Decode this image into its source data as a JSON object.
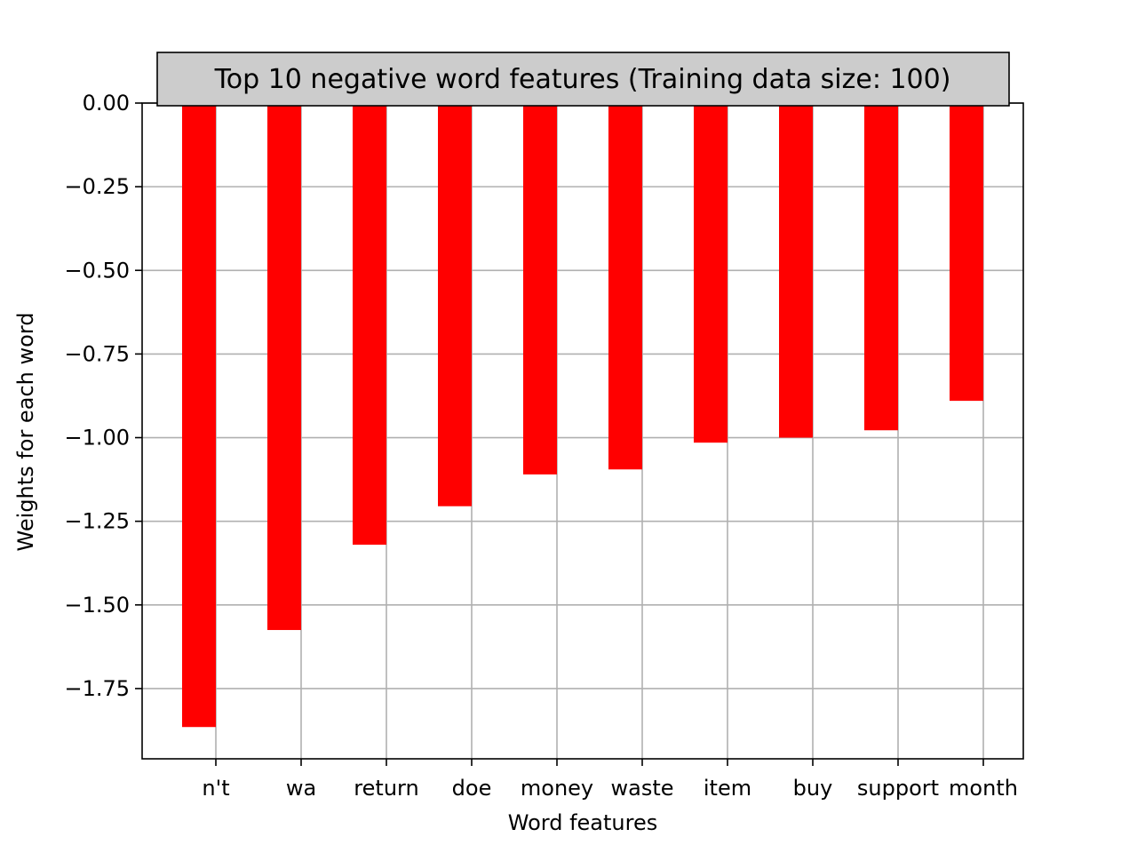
{
  "chart_data": {
    "type": "bar",
    "title": "Top 10 negative word features (Training data size: 100)",
    "xlabel": "Word features",
    "ylabel": "Weights for each word",
    "categories": [
      "n't",
      "wa",
      "return",
      "doe",
      "money",
      "waste",
      "item",
      "buy",
      "support",
      "month"
    ],
    "values": [
      -1.865,
      -1.575,
      -1.32,
      -1.205,
      -1.11,
      -1.095,
      -1.015,
      -1.0,
      -0.978,
      -0.89
    ],
    "ylim": [
      -1.96,
      0.0
    ],
    "yticks": [
      0.0,
      -0.25,
      -0.5,
      -0.75,
      -1.0,
      -1.25,
      -1.5,
      -1.75
    ],
    "ytick_labels": [
      "0.00",
      "−0.25",
      "−0.50",
      "−0.75",
      "−1.00",
      "−1.25",
      "−1.50",
      "−1.75"
    ],
    "grid": true,
    "bar_color": "#ff0000",
    "grid_color": "#b0b0b0",
    "title_box_color": "#cccccc"
  }
}
